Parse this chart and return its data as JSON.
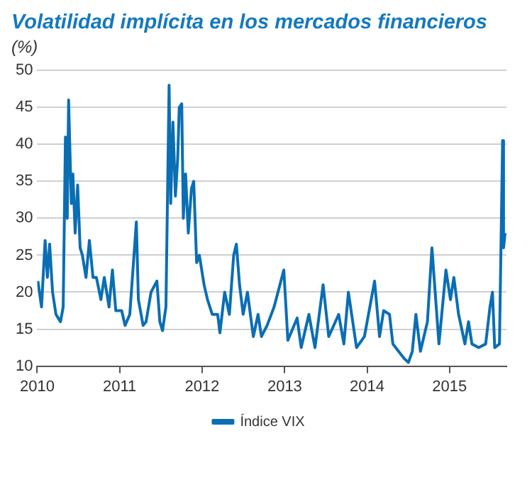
{
  "chart_data": {
    "type": "line",
    "title": "Volatilidad implícita en los mercados financieros",
    "ylabel": "(%)",
    "x": [
      "2010-01-04",
      "2010-01-20",
      "2010-02-05",
      "2010-02-15",
      "2010-02-25",
      "2010-03-10",
      "2010-03-25",
      "2010-04-14",
      "2010-04-26",
      "2010-05-06",
      "2010-05-14",
      "2010-05-20",
      "2010-06-01",
      "2010-06-08",
      "2010-06-18",
      "2010-06-29",
      "2010-07-10",
      "2010-07-20",
      "2010-08-05",
      "2010-08-20",
      "2010-09-05",
      "2010-09-20",
      "2010-10-10",
      "2010-10-25",
      "2010-11-15",
      "2010-11-30",
      "2010-12-15",
      "2011-01-10",
      "2011-01-25",
      "2011-02-15",
      "2011-03-16",
      "2011-03-25",
      "2011-04-15",
      "2011-04-28",
      "2011-05-20",
      "2011-06-15",
      "2011-06-28",
      "2011-07-10",
      "2011-07-25",
      "2011-08-08",
      "2011-08-15",
      "2011-08-25",
      "2011-09-05",
      "2011-09-15",
      "2011-09-22",
      "2011-10-03",
      "2011-10-10",
      "2011-10-20",
      "2011-11-01",
      "2011-11-15",
      "2011-11-25",
      "2011-12-08",
      "2011-12-20",
      "2012-01-10",
      "2012-01-25",
      "2012-02-15",
      "2012-03-10",
      "2012-03-20",
      "2012-04-10",
      "2012-05-01",
      "2012-05-20",
      "2012-06-01",
      "2012-06-15",
      "2012-07-01",
      "2012-07-20",
      "2012-08-15",
      "2012-09-05",
      "2012-09-20",
      "2012-10-15",
      "2012-11-15",
      "2012-12-28",
      "2013-01-15",
      "2013-02-25",
      "2013-03-15",
      "2013-04-18",
      "2013-05-15",
      "2013-06-20",
      "2013-07-15",
      "2013-08-28",
      "2013-09-20",
      "2013-10-10",
      "2013-11-15",
      "2013-12-20",
      "2014-02-03",
      "2014-02-25",
      "2014-03-15",
      "2014-04-10",
      "2014-04-25",
      "2014-05-20",
      "2014-06-15",
      "2014-07-03",
      "2014-07-20",
      "2014-08-05",
      "2014-08-25",
      "2014-09-25",
      "2014-10-15",
      "2014-11-15",
      "2014-12-16",
      "2015-01-05",
      "2015-01-20",
      "2015-02-10",
      "2015-03-10",
      "2015-03-26",
      "2015-04-10",
      "2015-05-10",
      "2015-06-10",
      "2015-06-29",
      "2015-07-10",
      "2015-07-20",
      "2015-08-10",
      "2015-08-24",
      "2015-08-28",
      "2015-09-04"
    ],
    "series": [
      {
        "name": "Índice VIX",
        "color": "#0a6eb4",
        "values": [
          21.5,
          18,
          27,
          22,
          26.5,
          20,
          17,
          16,
          18,
          41,
          30,
          46,
          32,
          36,
          28,
          34.5,
          26,
          25,
          22,
          27,
          22,
          22,
          19,
          22,
          18,
          23,
          17.5,
          17.5,
          15.5,
          17,
          29.5,
          19,
          15.5,
          16,
          20,
          21.5,
          16,
          14.8,
          18,
          48,
          32,
          43,
          33,
          38,
          45,
          45.5,
          30,
          36,
          28,
          34,
          35,
          24,
          25,
          21,
          19,
          17,
          17,
          14.5,
          20,
          17,
          25,
          26.5,
          21,
          17,
          20,
          14,
          17,
          14,
          15.5,
          18,
          23,
          13.5,
          16.5,
          12.5,
          17,
          12.5,
          21,
          14,
          17,
          13,
          20,
          12.5,
          14,
          21.5,
          14,
          17.5,
          17,
          13,
          12,
          11,
          10.5,
          12,
          17,
          12,
          16,
          26,
          13,
          23,
          19,
          22,
          17,
          13,
          16,
          13,
          12.5,
          13,
          18,
          20,
          12.5,
          13,
          40.5,
          26,
          28
        ]
      }
    ],
    "xlim": [
      "2010-01-01",
      "2015-09-10"
    ],
    "xticks": [
      {
        "value": "2010",
        "label": "2010"
      },
      {
        "value": "2011",
        "label": "2011"
      },
      {
        "value": "2012",
        "label": "2012"
      },
      {
        "value": "2013",
        "label": "2013"
      },
      {
        "value": "2014",
        "label": "2014"
      },
      {
        "value": "2015",
        "label": "2015"
      }
    ],
    "ylim": [
      10,
      50
    ],
    "yticks": [
      10,
      15,
      20,
      25,
      30,
      35,
      40,
      45,
      50
    ],
    "grid": "y",
    "legend": "bottom",
    "marker": "none",
    "line_style": "solid"
  }
}
